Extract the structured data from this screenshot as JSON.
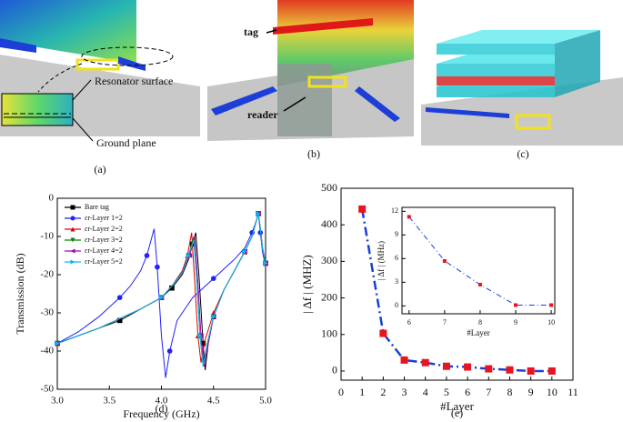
{
  "figure_panels": {
    "a": {
      "caption": "(a)",
      "labels": [
        "Resonator surface",
        "Ground plane"
      ]
    },
    "b": {
      "caption": "(b)",
      "labels": [
        "tag",
        "reader"
      ]
    },
    "c": {
      "caption": "(c)"
    }
  },
  "chart_data": [
    {
      "type": "line",
      "caption": "(d)",
      "xlabel": "Frequency (GHz)",
      "ylabel": "Transmission (dB)",
      "xlim": [
        3,
        5
      ],
      "ylim": [
        -50,
        0
      ],
      "xticks": [
        {
          "value": 3,
          "label": "3.0"
        },
        {
          "value": 3.5,
          "label": "3.5"
        },
        {
          "value": 4,
          "label": "4.0"
        },
        {
          "value": 4.5,
          "label": "4.5"
        },
        {
          "value": 5,
          "label": "5.0"
        }
      ],
      "yticks": [
        -50,
        -40,
        -30,
        -20,
        -10,
        0
      ],
      "legend": "upper left",
      "series": [
        {
          "name": "Bare tag",
          "color": "#000000",
          "marker": "square",
          "x": [
            3.0,
            3.2,
            3.4,
            3.6,
            3.8,
            4.0,
            4.1,
            4.2,
            4.26,
            4.3,
            4.33,
            4.36,
            4.4,
            4.42,
            4.45,
            4.5,
            4.6,
            4.7,
            4.8,
            4.87,
            4.91,
            4.93,
            4.95,
            4.97,
            5.0
          ],
          "values": [
            -38,
            -36,
            -34,
            -32,
            -29,
            -26,
            -23.5,
            -20,
            -16,
            -12,
            -9,
            -20,
            -38,
            -45,
            -38,
            -31,
            -24,
            -19,
            -14,
            -10,
            -6,
            -4,
            -8,
            -13,
            -17
          ]
        },
        {
          "name": "εr-Layer 1=2",
          "color": "#1f1fff",
          "marker": "circle",
          "x": [
            3.0,
            3.2,
            3.4,
            3.6,
            3.7,
            3.8,
            3.86,
            3.9,
            3.93,
            3.96,
            4.0,
            4.04,
            4.08,
            4.15,
            4.3,
            4.5,
            4.7,
            4.8,
            4.87,
            4.91,
            4.93,
            4.95,
            4.97,
            5.0
          ],
          "values": [
            -38,
            -35,
            -31,
            -26,
            -23,
            -19,
            -15,
            -11,
            -8,
            -18,
            -36,
            -47,
            -40,
            -32,
            -26,
            -21,
            -16,
            -13,
            -9,
            -6,
            -4,
            -9,
            -14,
            -18
          ]
        },
        {
          "name": "εr-Layer 2=2",
          "color": "#e00000",
          "marker": "triangle-up",
          "x": [
            3.0,
            3.4,
            3.8,
            4.0,
            4.1,
            4.2,
            4.25,
            4.29,
            4.32,
            4.35,
            4.38,
            4.42,
            4.5,
            4.6,
            4.7,
            4.8,
            4.87,
            4.91,
            4.93,
            4.95,
            4.97,
            5.0
          ],
          "values": [
            -38,
            -34,
            -29,
            -26,
            -23,
            -19,
            -15,
            -9,
            -22,
            -36,
            -43,
            -37,
            -30,
            -24,
            -19,
            -14,
            -10,
            -6,
            -4,
            -8,
            -13,
            -17
          ]
        },
        {
          "name": "εr-Layer 3=2",
          "color": "#008800",
          "marker": "triangle-down",
          "x": [
            3.0,
            3.4,
            3.8,
            4.0,
            4.1,
            4.2,
            4.26,
            4.31,
            4.34,
            4.37,
            4.4,
            4.44,
            4.5,
            4.6,
            4.7,
            4.8,
            4.87,
            4.91,
            4.93,
            4.95,
            4.97,
            5.0
          ],
          "values": [
            -38,
            -34,
            -29,
            -26,
            -23,
            -19.5,
            -15,
            -10,
            -22,
            -36,
            -44,
            -38,
            -31,
            -24,
            -19,
            -14,
            -10,
            -6,
            -4,
            -8,
            -13,
            -17
          ]
        },
        {
          "name": "εr-Layer 4=2",
          "color": "#aa00aa",
          "marker": "triangle-left",
          "x": [
            3.0,
            3.4,
            3.8,
            4.0,
            4.1,
            4.2,
            4.27,
            4.32,
            4.35,
            4.38,
            4.41,
            4.45,
            4.5,
            4.6,
            4.7,
            4.8,
            4.87,
            4.91,
            4.93,
            4.95,
            4.97,
            5.0
          ],
          "values": [
            -38,
            -34,
            -29,
            -26,
            -23,
            -19.5,
            -15,
            -10,
            -22,
            -36,
            -44,
            -38,
            -31,
            -24,
            -19,
            -14,
            -10,
            -6,
            -4,
            -8,
            -13,
            -17
          ]
        },
        {
          "name": "εr-Layer 5=2",
          "color": "#00bbee",
          "marker": "triangle-right",
          "x": [
            3.0,
            3.4,
            3.8,
            4.0,
            4.1,
            4.2,
            4.26,
            4.31,
            4.34,
            4.37,
            4.4,
            4.44,
            4.5,
            4.6,
            4.7,
            4.8,
            4.87,
            4.91,
            4.93,
            4.95,
            4.97,
            5.0
          ],
          "values": [
            -38,
            -34,
            -29,
            -26,
            -23,
            -19.5,
            -15,
            -11,
            -22,
            -36,
            -44,
            -38,
            -31,
            -24,
            -19,
            -14,
            -10,
            -6,
            -4,
            -8,
            -13,
            -17
          ]
        }
      ]
    },
    {
      "type": "line",
      "caption": "(e)",
      "xlabel": "#Layer",
      "ylabel": "| Δf | (MHZ)",
      "xlim": [
        0,
        11
      ],
      "ylim": [
        -25,
        500
      ],
      "xticks": [
        0,
        1,
        2,
        3,
        4,
        5,
        6,
        7,
        8,
        9,
        10,
        11
      ],
      "yticks": [
        0,
        100,
        200,
        300,
        400,
        500
      ],
      "x": [
        1,
        2,
        3,
        4,
        5,
        6,
        7,
        8,
        9,
        10
      ],
      "series": [
        {
          "color": "#1a3fd6",
          "marker_color": "#e8141e",
          "marker": "square",
          "values": [
            443,
            103,
            30,
            23,
            13,
            11,
            6,
            3,
            0,
            0
          ]
        }
      ]
    },
    {
      "type": "line",
      "xlabel": "#Layer",
      "ylabel": "| Δf | (MHz)",
      "xlim": [
        5.8,
        10.1
      ],
      "ylim": [
        -1,
        12.5
      ],
      "xticks": [
        6,
        7,
        8,
        9,
        10
      ],
      "yticks": [
        0,
        3,
        6,
        9,
        12
      ],
      "x": [
        6,
        7,
        8,
        9,
        10
      ],
      "series": [
        {
          "color": "#1a3fd6",
          "marker_color": "#e8141e",
          "marker": "square",
          "values": [
            11.3,
            5.7,
            2.7,
            0.1,
            0.1
          ]
        }
      ]
    }
  ]
}
